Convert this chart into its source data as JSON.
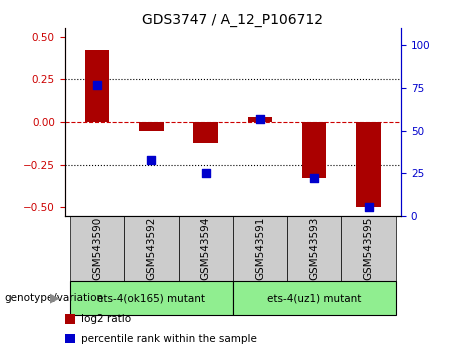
{
  "title": "GDS3747 / A_12_P106712",
  "samples": [
    "GSM543590",
    "GSM543592",
    "GSM543594",
    "GSM543591",
    "GSM543593",
    "GSM543595"
  ],
  "log2_ratios": [
    0.42,
    -0.05,
    -0.12,
    0.03,
    -0.33,
    -0.5
  ],
  "percentile_ranks": [
    77,
    33,
    25,
    57,
    22,
    5
  ],
  "groups": [
    {
      "label": "ets-4(ok165) mutant",
      "indices": [
        0,
        1,
        2
      ],
      "color": "#90EE90"
    },
    {
      "label": "ets-4(uz1) mutant",
      "indices": [
        3,
        4,
        5
      ],
      "color": "#90EE90"
    }
  ],
  "bar_color": "#AA0000",
  "dot_color": "#0000CC",
  "left_axis_color": "#CC0000",
  "right_axis_color": "#0000CC",
  "ylim_left": [
    -0.55,
    0.55
  ],
  "ylim_right": [
    0,
    110
  ],
  "yticks_left": [
    -0.5,
    -0.25,
    0,
    0.25,
    0.5
  ],
  "yticks_right": [
    0,
    25,
    50,
    75,
    100
  ],
  "hline_color": "#CC0000",
  "grid_color": "black",
  "bar_width": 0.45,
  "dot_size": 40,
  "background_color": "#ffffff",
  "sample_box_color": "#cccccc",
  "label_fontsize": 7.5,
  "tick_fontsize": 7.5,
  "title_fontsize": 10,
  "legend_items": [
    {
      "color": "#AA0000",
      "label": "log2 ratio"
    },
    {
      "color": "#0000CC",
      "label": "percentile rank within the sample"
    }
  ],
  "genotype_label": "genotype/variation",
  "xlim": [
    -0.6,
    5.6
  ]
}
